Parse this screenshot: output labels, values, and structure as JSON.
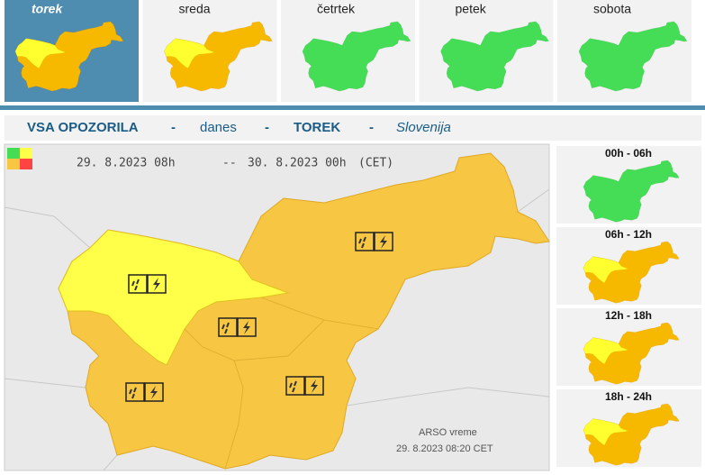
{
  "tabs": [
    "torek",
    "sreda",
    "četrtek",
    "petek",
    "sobota"
  ],
  "header": {
    "parts": [
      "VSA OPOZORILA",
      "-",
      "danes",
      "-",
      "TOREK",
      "-",
      "Slovenija"
    ]
  },
  "map": {
    "valid_from": "29. 8.2023  08h",
    "separator": "--",
    "valid_to": "30. 8.2023  00h",
    "timezone": "(CET)",
    "source": "ARSO vreme",
    "issued": "29. 8.2023   08:20 CET"
  },
  "periods": [
    "00h - 06h",
    "06h - 12h",
    "12h - 18h",
    "18h - 24h"
  ]
}
